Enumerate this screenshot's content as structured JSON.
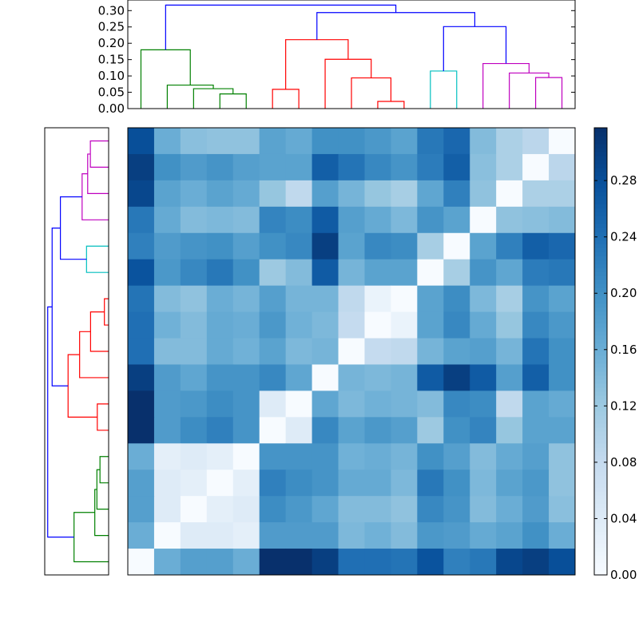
{
  "chart_data": [
    {
      "type": "dendrogram",
      "orientation": "top",
      "ylim": [
        0,
        0.3325
      ],
      "yticks": [
        "0.00",
        "0.05",
        "0.10",
        "0.15",
        "0.20",
        "0.25",
        "0.30"
      ],
      "leaf_count": 17,
      "merges": [
        {
          "a": 3,
          "b": 4,
          "height": 0.045,
          "color": "#008000"
        },
        {
          "a": 2,
          "b": 17,
          "height": 0.061,
          "color": "#008000"
        },
        {
          "a": 1,
          "b": 18,
          "height": 0.072,
          "color": "#008000"
        },
        {
          "a": 0,
          "b": 19,
          "height": 0.18,
          "color": "#008000"
        },
        {
          "a": 9,
          "b": 10,
          "height": 0.022,
          "color": "#ff0000"
        },
        {
          "a": 5,
          "b": 6,
          "height": 0.059,
          "color": "#ff0000"
        },
        {
          "a": 8,
          "b": 21,
          "height": 0.094,
          "color": "#ff0000"
        },
        {
          "a": 7,
          "b": 23,
          "height": 0.151,
          "color": "#ff0000"
        },
        {
          "a": 22,
          "b": 24,
          "height": 0.211,
          "color": "#ff0000"
        },
        {
          "a": 15,
          "b": 16,
          "height": 0.095,
          "color": "#bf00bf"
        },
        {
          "a": 14,
          "b": 26,
          "height": 0.109,
          "color": "#bf00bf"
        },
        {
          "a": 11,
          "b": 12,
          "height": 0.115,
          "color": "#00bfbf"
        },
        {
          "a": 13,
          "b": 27,
          "height": 0.138,
          "color": "#bf00bf"
        },
        {
          "a": 28,
          "b": 29,
          "height": 0.251,
          "color": "#0000ff"
        },
        {
          "a": 25,
          "b": 30,
          "height": 0.294,
          "color": "#0000ff"
        },
        {
          "a": 20,
          "b": 31,
          "height": 0.317,
          "color": "#0000ff"
        }
      ]
    },
    {
      "type": "dendrogram",
      "orientation": "left",
      "same_tree_as": "top"
    },
    {
      "type": "heatmap",
      "colormap": "Blues",
      "vmin": 0,
      "vmax": 0.3175,
      "row_order": "leaf 16 at top, leaf 0 at bottom",
      "matrix": [
        [
          0.28,
          0.16,
          0.135,
          0.13,
          0.13,
          0.175,
          0.165,
          0.2,
          0.2,
          0.19,
          0.175,
          0.23,
          0.25,
          0.14,
          0.105,
          0.09,
          0
        ],
        [
          0.3,
          0.2,
          0.185,
          0.195,
          0.18,
          0.175,
          0.175,
          0.26,
          0.235,
          0.21,
          0.195,
          0.225,
          0.26,
          0.135,
          0.105,
          0,
          0.09
        ],
        [
          0.29,
          0.175,
          0.16,
          0.175,
          0.165,
          0.125,
          0.085,
          0.18,
          0.15,
          0.125,
          0.11,
          0.17,
          0.22,
          0.13,
          0,
          0.105,
          0.105
        ],
        [
          0.23,
          0.165,
          0.14,
          0.145,
          0.14,
          0.215,
          0.205,
          0.265,
          0.18,
          0.165,
          0.145,
          0.195,
          0.175,
          0,
          0.13,
          0.135,
          0.14
        ],
        [
          0.22,
          0.185,
          0.195,
          0.2,
          0.18,
          0.2,
          0.21,
          0.3,
          0.175,
          0.21,
          0.205,
          0.11,
          0,
          0.175,
          0.22,
          0.26,
          0.25
        ],
        [
          0.275,
          0.19,
          0.21,
          0.23,
          0.2,
          0.12,
          0.14,
          0.265,
          0.15,
          0.175,
          0.175,
          0,
          0.11,
          0.195,
          0.17,
          0.225,
          0.23
        ],
        [
          0.235,
          0.14,
          0.13,
          0.16,
          0.15,
          0.18,
          0.15,
          0.15,
          0.085,
          0.02,
          0,
          0.175,
          0.205,
          0.145,
          0.11,
          0.195,
          0.175
        ],
        [
          0.24,
          0.155,
          0.14,
          0.165,
          0.16,
          0.19,
          0.155,
          0.145,
          0.08,
          0,
          0.02,
          0.175,
          0.21,
          0.165,
          0.125,
          0.21,
          0.19
        ],
        [
          0.24,
          0.14,
          0.14,
          0.165,
          0.155,
          0.175,
          0.145,
          0.15,
          0,
          0.08,
          0.085,
          0.15,
          0.175,
          0.18,
          0.15,
          0.235,
          0.2
        ],
        [
          0.3,
          0.185,
          0.17,
          0.195,
          0.195,
          0.21,
          0.17,
          0,
          0.15,
          0.145,
          0.15,
          0.265,
          0.3,
          0.265,
          0.18,
          0.26,
          0.2
        ],
        [
          0.317,
          0.185,
          0.19,
          0.205,
          0.195,
          0.04,
          0,
          0.17,
          0.145,
          0.155,
          0.15,
          0.14,
          0.21,
          0.205,
          0.085,
          0.175,
          0.165
        ],
        [
          0.317,
          0.185,
          0.205,
          0.22,
          0.195,
          0,
          0.04,
          0.21,
          0.175,
          0.19,
          0.18,
          0.12,
          0.2,
          0.215,
          0.125,
          0.175,
          0.175
        ],
        [
          0.16,
          0.03,
          0.04,
          0.03,
          0,
          0.195,
          0.195,
          0.195,
          0.155,
          0.16,
          0.15,
          0.2,
          0.18,
          0.14,
          0.165,
          0.18,
          0.13
        ],
        [
          0.18,
          0.04,
          0.03,
          0,
          0.03,
          0.22,
          0.205,
          0.195,
          0.165,
          0.165,
          0.145,
          0.23,
          0.2,
          0.145,
          0.175,
          0.19,
          0.13
        ],
        [
          0.18,
          0.04,
          0,
          0.03,
          0.04,
          0.205,
          0.19,
          0.17,
          0.14,
          0.14,
          0.13,
          0.21,
          0.195,
          0.14,
          0.16,
          0.185,
          0.135
        ],
        [
          0.16,
          0,
          0.04,
          0.04,
          0.03,
          0.185,
          0.185,
          0.185,
          0.145,
          0.155,
          0.14,
          0.19,
          0.185,
          0.165,
          0.175,
          0.2,
          0.16
        ],
        [
          0,
          0.16,
          0.18,
          0.18,
          0.16,
          0.317,
          0.317,
          0.3,
          0.24,
          0.24,
          0.235,
          0.275,
          0.22,
          0.23,
          0.29,
          0.3,
          0.28
        ]
      ],
      "colorbar_ticks": [
        "0.00",
        "0.04",
        "0.08",
        "0.12",
        "0.16",
        "0.20",
        "0.24",
        "0.28"
      ]
    }
  ]
}
